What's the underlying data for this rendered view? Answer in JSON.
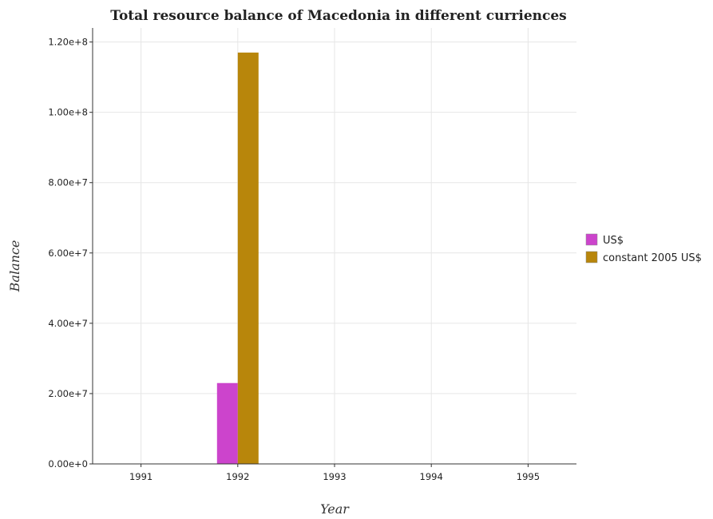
{
  "chart_data": {
    "type": "bar",
    "title": "Total resource balance of Macedonia in different curriences",
    "xlabel": "Year",
    "ylabel": "Balance",
    "categories": [
      "1991",
      "1992",
      "1993",
      "1994",
      "1995"
    ],
    "series": [
      {
        "name": "US$",
        "values": [
          0,
          23000000,
          0,
          0,
          0
        ],
        "color": "#cc44cc"
      },
      {
        "name": "constant 2005 US$",
        "values": [
          0,
          117000000,
          0,
          0,
          0
        ],
        "color": "#b8860b"
      }
    ],
    "ylim": [
      0,
      124000000
    ],
    "yticks": [
      0,
      20000000,
      40000000,
      60000000,
      80000000,
      100000000,
      120000000
    ],
    "ytick_labels": [
      "0.00e+0",
      "2.00e+7",
      "4.00e+7",
      "6.00e+7",
      "8.00e+7",
      "1.00e+8",
      "1.20e+8"
    ],
    "grid": true,
    "legend_position": "right"
  }
}
